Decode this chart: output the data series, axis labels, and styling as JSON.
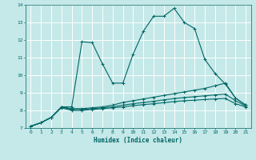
{
  "title": "",
  "xlabel": "Humidex (Indice chaleur)",
  "xlim": [
    -0.5,
    21.5
  ],
  "ylim": [
    7,
    14
  ],
  "yticks": [
    7,
    8,
    9,
    10,
    11,
    12,
    13,
    14
  ],
  "xticks": [
    0,
    1,
    2,
    3,
    4,
    5,
    6,
    7,
    8,
    9,
    10,
    11,
    12,
    13,
    14,
    15,
    16,
    17,
    18,
    19,
    20,
    21
  ],
  "background_color": "#c5e8e8",
  "grid_color": "#ffffff",
  "line_color": "#006666",
  "lines": [
    {
      "x": [
        0,
        1,
        2,
        3,
        4,
        5,
        6,
        7,
        8,
        9,
        10,
        11,
        12,
        13,
        14,
        15,
        16,
        17,
        18,
        19,
        20,
        21
      ],
      "y": [
        7.1,
        7.3,
        7.6,
        8.2,
        8.2,
        11.9,
        11.85,
        10.65,
        9.55,
        9.55,
        11.2,
        12.5,
        13.35,
        13.35,
        13.8,
        13.0,
        12.65,
        10.9,
        10.1,
        9.5,
        8.7,
        8.3
      ]
    },
    {
      "x": [
        0,
        1,
        2,
        3,
        4,
        5,
        6,
        7,
        8,
        9,
        10,
        11,
        12,
        13,
        14,
        15,
        16,
        17,
        18,
        19,
        20,
        21
      ],
      "y": [
        7.1,
        7.3,
        7.6,
        8.2,
        8.1,
        8.1,
        8.15,
        8.2,
        8.3,
        8.45,
        8.55,
        8.65,
        8.75,
        8.85,
        8.95,
        9.05,
        9.15,
        9.25,
        9.4,
        9.55,
        8.7,
        8.3
      ]
    },
    {
      "x": [
        0,
        1,
        2,
        3,
        4,
        5,
        6,
        7,
        8,
        9,
        10,
        11,
        12,
        13,
        14,
        15,
        16,
        17,
        18,
        19,
        20,
        21
      ],
      "y": [
        7.1,
        7.3,
        7.6,
        8.2,
        8.05,
        8.05,
        8.1,
        8.15,
        8.2,
        8.3,
        8.38,
        8.45,
        8.52,
        8.6,
        8.67,
        8.73,
        8.78,
        8.83,
        8.88,
        8.93,
        8.55,
        8.25
      ]
    },
    {
      "x": [
        0,
        1,
        2,
        3,
        4,
        5,
        6,
        7,
        8,
        9,
        10,
        11,
        12,
        13,
        14,
        15,
        16,
        17,
        18,
        19,
        20,
        21
      ],
      "y": [
        7.1,
        7.3,
        7.6,
        8.15,
        8.0,
        8.0,
        8.05,
        8.1,
        8.15,
        8.2,
        8.27,
        8.33,
        8.38,
        8.44,
        8.5,
        8.55,
        8.58,
        8.62,
        8.65,
        8.68,
        8.38,
        8.2
      ]
    }
  ]
}
